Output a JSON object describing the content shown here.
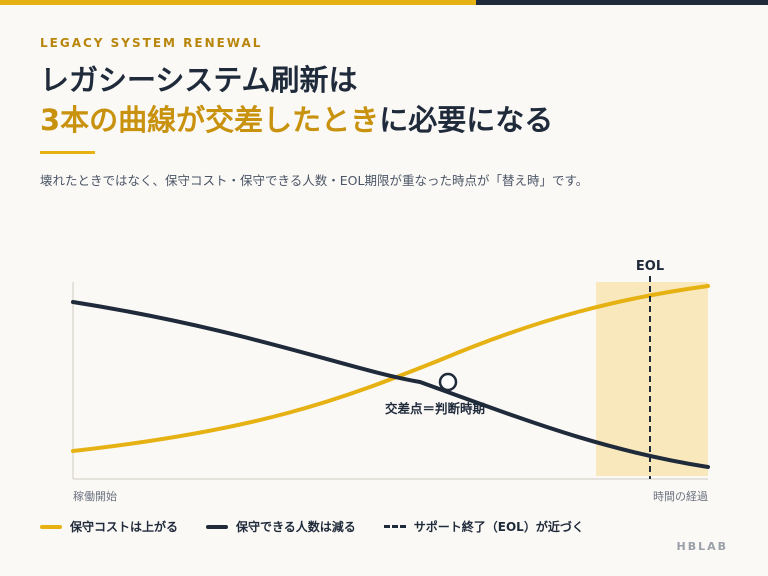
{
  "header": {
    "kicker": "LEGACY SYSTEM RENEWAL",
    "title_line1": "レガシーシステム刷新は",
    "title_line2_highlight": "3本の曲線が交差したとき",
    "title_line2_rest": "に必要になる",
    "subtitle": "壊れたときではなく、保守コスト・保守できる人数・EOL期限が重なった時点が「替え時」です。"
  },
  "chart": {
    "eol_label": "EOL",
    "crossing_label": "交差点＝判断時期",
    "x_start_label": "稼働開始",
    "x_end_label": "時間の経過",
    "colors": {
      "cost": "#e6b112",
      "staff": "#1f2a3a",
      "eol_band": "#f7e2a8"
    }
  },
  "legend": {
    "cost": "保守コストは上がる",
    "staff": "保守できる人数は減る",
    "eol": "サポート終了（EOL）が近づく"
  },
  "brand": "HBLAB"
}
